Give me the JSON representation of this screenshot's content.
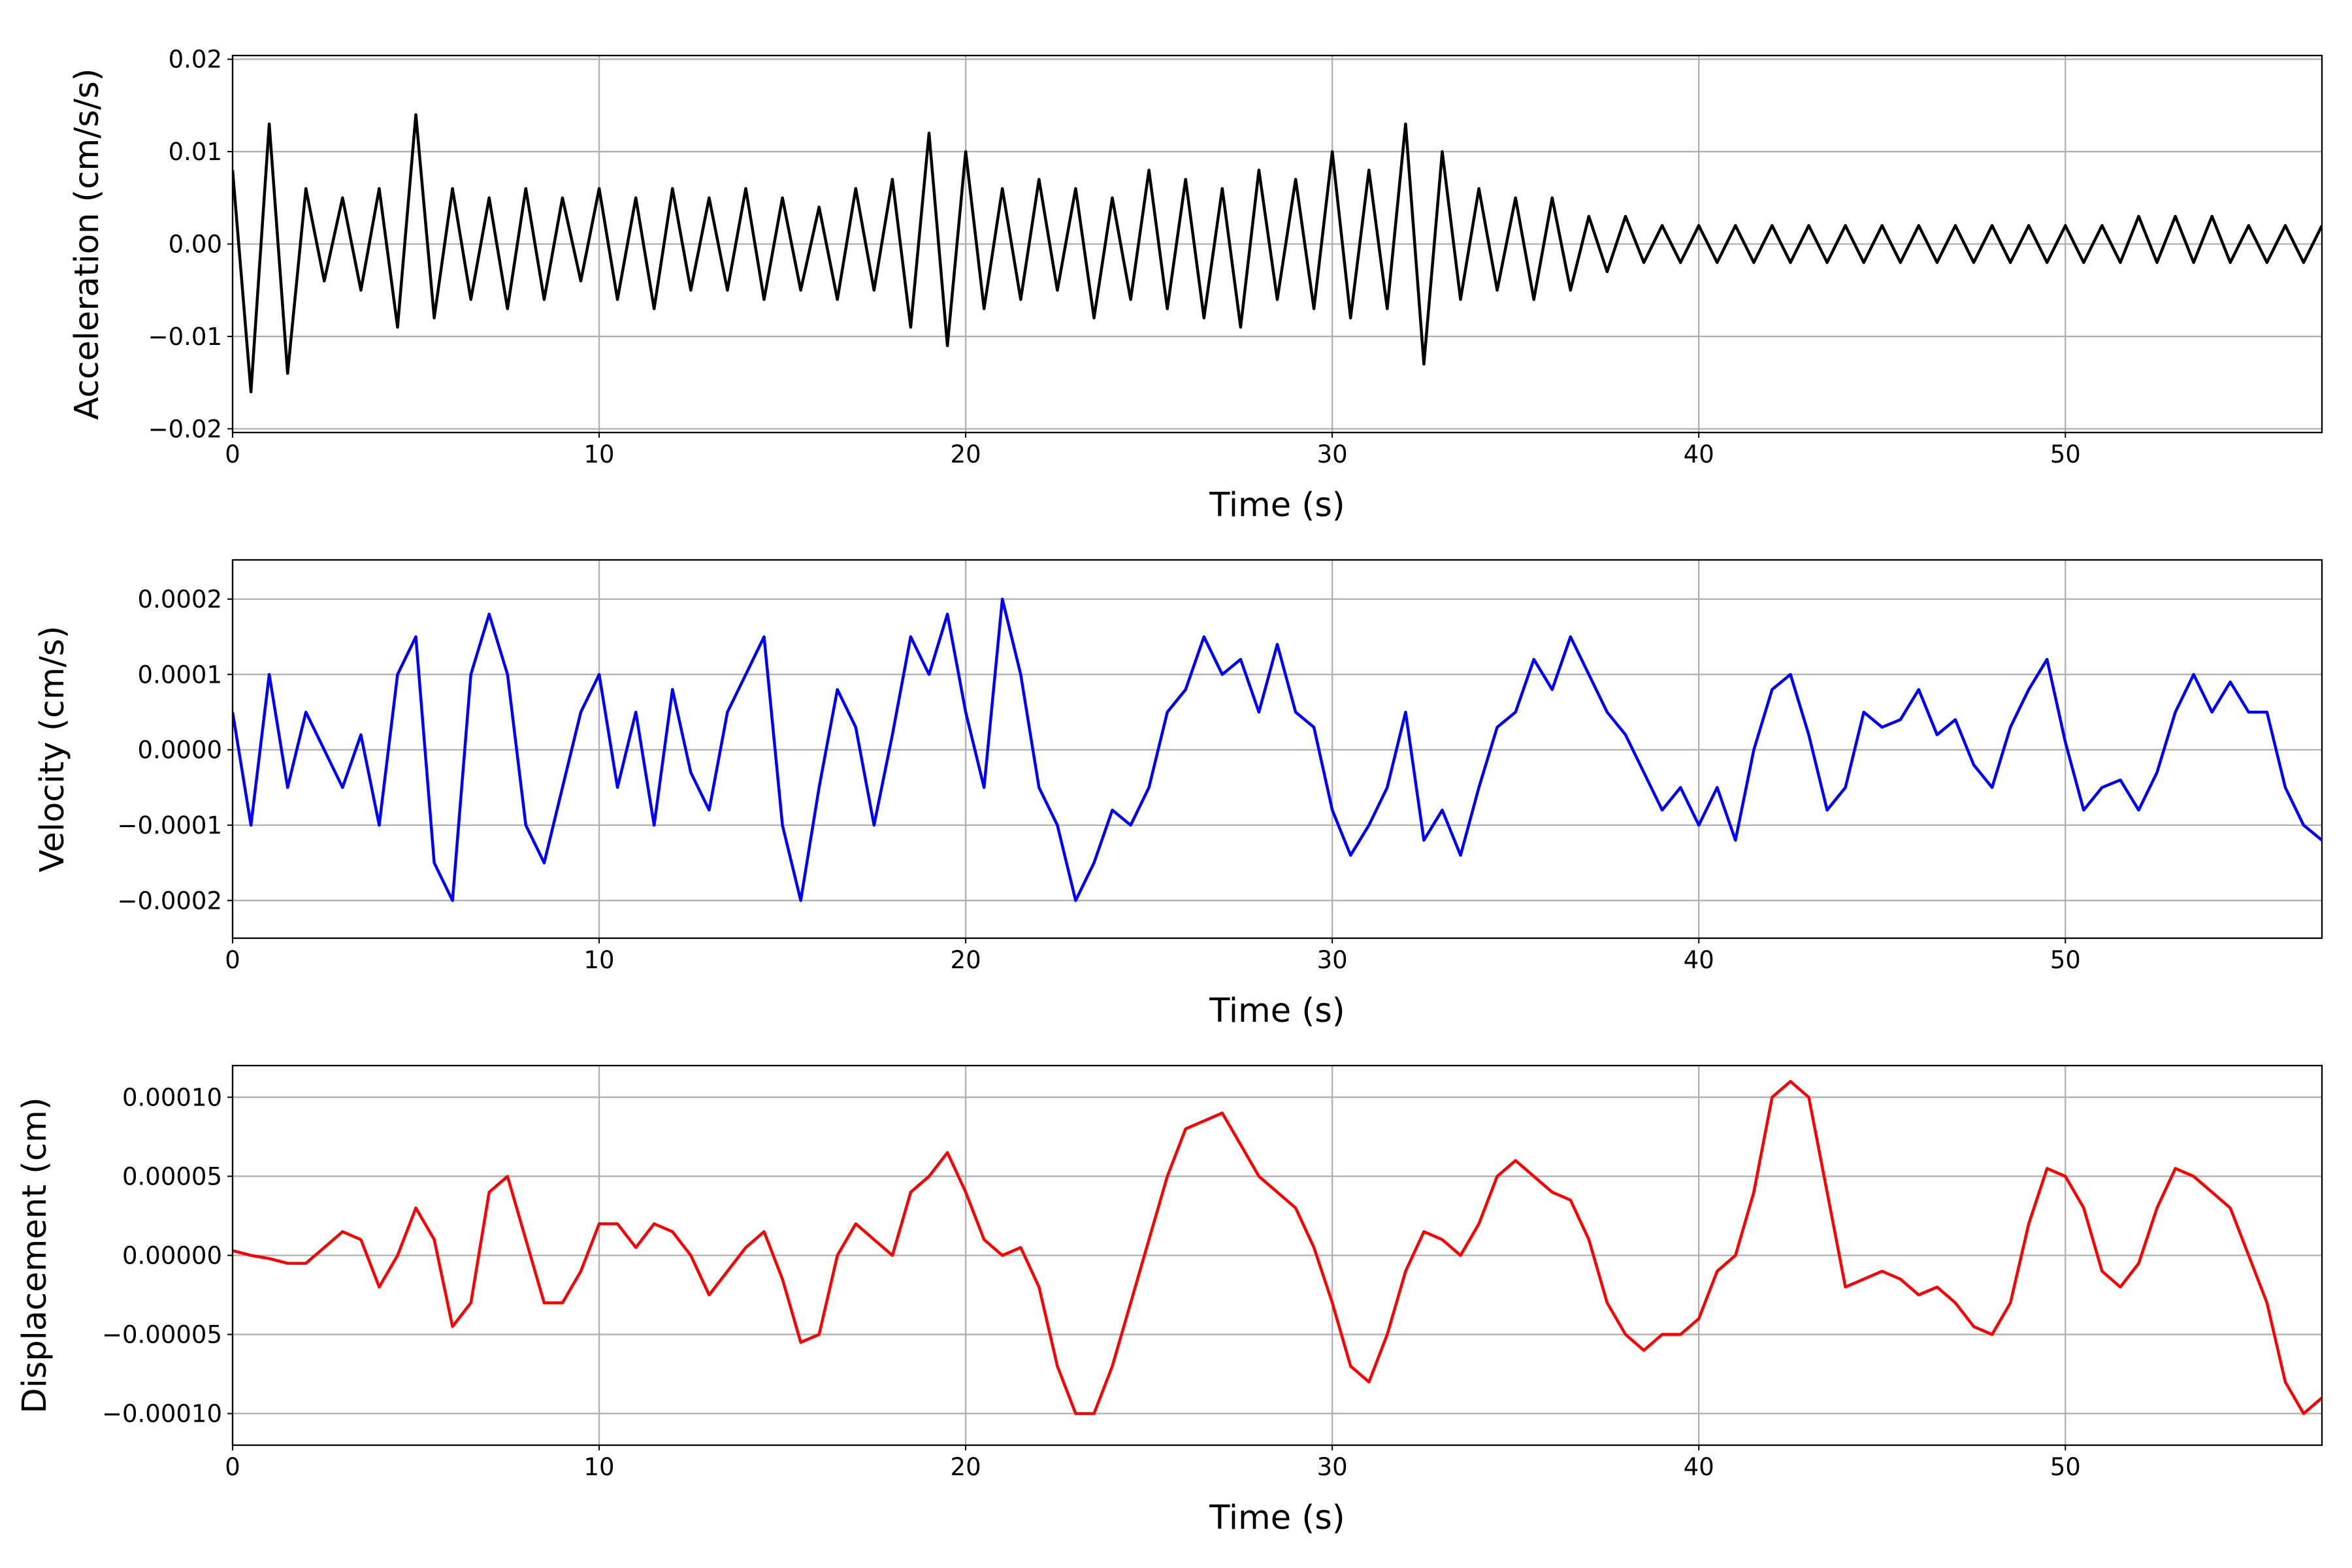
{
  "chart_data": [
    {
      "type": "line",
      "xlabel": "Time (s)",
      "ylabel": "Acceleration (cm/s/s)",
      "color": "#000000",
      "grid": true,
      "xlim": [
        0,
        57
      ],
      "ylim": [
        -0.0204,
        0.0204
      ],
      "xticks": [
        0,
        10,
        20,
        30,
        40,
        50
      ],
      "yticks": [
        {
          "value": -0.02,
          "label": "−0.02"
        },
        {
          "value": -0.01,
          "label": "−0.01"
        },
        {
          "value": 0,
          "label": "0.00"
        },
        {
          "value": 0.01,
          "label": "0.01"
        },
        {
          "value": 0.02,
          "label": "0.02"
        }
      ],
      "x": [
        0,
        0.5,
        1,
        1.5,
        2,
        2.5,
        3,
        3.5,
        4,
        4.5,
        5,
        5.5,
        6,
        6.5,
        7,
        7.5,
        8,
        8.5,
        9,
        9.5,
        10,
        10.5,
        11,
        11.5,
        12,
        12.5,
        13,
        13.5,
        14,
        14.5,
        15,
        15.5,
        16,
        16.5,
        17,
        17.5,
        18,
        18.5,
        19,
        19.5,
        20,
        20.5,
        21,
        21.5,
        22,
        22.5,
        23,
        23.5,
        24,
        24.5,
        25,
        25.5,
        26,
        26.5,
        27,
        27.5,
        28,
        28.5,
        29,
        29.5,
        30,
        30.5,
        31,
        31.5,
        32,
        32.5,
        33,
        33.5,
        34,
        34.5,
        35,
        35.5,
        36,
        36.5,
        37,
        37.5,
        38,
        38.5,
        39,
        39.5,
        40,
        40.5,
        41,
        41.5,
        42,
        42.5,
        43,
        43.5,
        44,
        44.5,
        45,
        45.5,
        46,
        46.5,
        47,
        47.5,
        48,
        48.5,
        49,
        49.5,
        50,
        50.5,
        51,
        51.5,
        52,
        52.5,
        53,
        53.5,
        54,
        54.5,
        55,
        55.5,
        56,
        56.5,
        57
      ],
      "values": [
        0.008,
        -0.016,
        0.013,
        -0.014,
        0.006,
        -0.004,
        0.005,
        -0.005,
        0.006,
        -0.009,
        0.014,
        -0.008,
        0.006,
        -0.006,
        0.005,
        -0.007,
        0.006,
        -0.006,
        0.005,
        -0.004,
        0.006,
        -0.006,
        0.005,
        -0.007,
        0.006,
        -0.005,
        0.005,
        -0.005,
        0.006,
        -0.006,
        0.005,
        -0.005,
        0.004,
        -0.006,
        0.006,
        -0.005,
        0.007,
        -0.009,
        0.012,
        -0.011,
        0.01,
        -0.007,
        0.006,
        -0.006,
        0.007,
        -0.005,
        0.006,
        -0.008,
        0.005,
        -0.006,
        0.008,
        -0.007,
        0.007,
        -0.008,
        0.006,
        -0.009,
        0.008,
        -0.006,
        0.007,
        -0.007,
        0.01,
        -0.008,
        0.008,
        -0.007,
        0.013,
        -0.013,
        0.01,
        -0.006,
        0.006,
        -0.005,
        0.005,
        -0.006,
        0.005,
        -0.005,
        0.003,
        -0.003,
        0.003,
        -0.002,
        0.002,
        -0.002,
        0.002,
        -0.002,
        0.002,
        -0.002,
        0.002,
        -0.002,
        0.002,
        -0.002,
        0.002,
        -0.002,
        0.002,
        -0.002,
        0.002,
        -0.002,
        0.002,
        -0.002,
        0.002,
        -0.002,
        0.002,
        -0.002,
        0.002,
        -0.002,
        0.002,
        -0.002,
        0.003,
        -0.002,
        0.003,
        -0.002,
        0.003,
        -0.002,
        0.002,
        -0.002,
        0.002,
        -0.002,
        0.002
      ]
    },
    {
      "type": "line",
      "xlabel": "Time (s)",
      "ylabel": "Velocity (cm/s)",
      "color": "#0000ff",
      "grid": true,
      "xlim": [
        0,
        57
      ],
      "ylim": [
        -0.00025,
        0.000252
      ],
      "xticks": [
        0,
        10,
        20,
        30,
        40,
        50
      ],
      "yticks": [
        {
          "value": -0.0002,
          "label": "−0.0002"
        },
        {
          "value": -0.0001,
          "label": "−0.0001"
        },
        {
          "value": 0,
          "label": "0.0000"
        },
        {
          "value": 0.0001,
          "label": "0.0001"
        },
        {
          "value": 0.0002,
          "label": "0.0002"
        }
      ],
      "x": [
        0,
        0.5,
        1,
        1.5,
        2,
        2.5,
        3,
        3.5,
        4,
        4.5,
        5,
        5.5,
        6,
        6.5,
        7,
        7.5,
        8,
        8.5,
        9,
        9.5,
        10,
        10.5,
        11,
        11.5,
        12,
        12.5,
        13,
        13.5,
        14,
        14.5,
        15,
        15.5,
        16,
        16.5,
        17,
        17.5,
        18,
        18.5,
        19,
        19.5,
        20,
        20.5,
        21,
        21.5,
        22,
        22.5,
        23,
        23.5,
        24,
        24.5,
        25,
        25.5,
        26,
        26.5,
        27,
        27.5,
        28,
        28.5,
        29,
        29.5,
        30,
        30.5,
        31,
        31.5,
        32,
        32.5,
        33,
        33.5,
        34,
        34.5,
        35,
        35.5,
        36,
        36.5,
        37,
        37.5,
        38,
        38.5,
        39,
        39.5,
        40,
        40.5,
        41,
        41.5,
        42,
        42.5,
        43,
        43.5,
        44,
        44.5,
        45,
        45.5,
        46,
        46.5,
        47,
        47.5,
        48,
        48.5,
        49,
        49.5,
        50,
        50.5,
        51,
        51.5,
        52,
        52.5,
        53,
        53.5,
        54,
        54.5,
        55,
        55.5,
        56,
        56.5,
        57
      ],
      "values": [
        5e-05,
        -0.0001,
        0.0001,
        -5e-05,
        5e-05,
        0,
        -5e-05,
        2e-05,
        -0.0001,
        0.0001,
        0.00015,
        -0.00015,
        -0.0002,
        0.0001,
        0.00018,
        0.0001,
        -0.0001,
        -0.00015,
        -5e-05,
        5e-05,
        0.0001,
        -5e-05,
        5e-05,
        -0.0001,
        8e-05,
        -3e-05,
        -8e-05,
        5e-05,
        0.0001,
        0.00015,
        -0.0001,
        -0.0002,
        -5e-05,
        8e-05,
        3e-05,
        -0.0001,
        2e-05,
        0.00015,
        0.0001,
        0.00018,
        5e-05,
        -5e-05,
        0.0002,
        0.0001,
        -5e-05,
        -0.0001,
        -0.0002,
        -0.00015,
        -8e-05,
        -0.0001,
        -5e-05,
        5e-05,
        8e-05,
        0.00015,
        0.0001,
        0.00012,
        5e-05,
        0.00014,
        5e-05,
        3e-05,
        -8e-05,
        -0.00014,
        -0.0001,
        -5e-05,
        5e-05,
        -0.00012,
        -8e-05,
        -0.00014,
        -5e-05,
        3e-05,
        5e-05,
        0.00012,
        8e-05,
        0.00015,
        0.0001,
        5e-05,
        2e-05,
        -3e-05,
        -8e-05,
        -5e-05,
        -0.0001,
        -5e-05,
        -0.00012,
        0,
        8e-05,
        0.0001,
        2e-05,
        -8e-05,
        -5e-05,
        5e-05,
        3e-05,
        4e-05,
        8e-05,
        2e-05,
        4e-05,
        -2e-05,
        -5e-05,
        3e-05,
        8e-05,
        0.00012,
        1e-05,
        -8e-05,
        -5e-05,
        -4e-05,
        -8e-05,
        -3e-05,
        5e-05,
        0.0001,
        5e-05,
        9e-05,
        5e-05,
        5e-05,
        -5e-05,
        -0.0001,
        -0.00012
      ]
    },
    {
      "type": "line",
      "xlabel": "Time (s)",
      "ylabel": "Displacement (cm)",
      "color": "#ff0000",
      "grid": true,
      "xlim": [
        0,
        57
      ],
      "ylim": [
        -0.00012,
        0.00012
      ],
      "xticks": [
        0,
        10,
        20,
        30,
        40,
        50
      ],
      "yticks": [
        {
          "value": -0.0001,
          "label": "−0.00010"
        },
        {
          "value": -5e-05,
          "label": "−0.00005"
        },
        {
          "value": 0,
          "label": "0.00000"
        },
        {
          "value": 5e-05,
          "label": "0.00005"
        },
        {
          "value": 0.0001,
          "label": "0.00010"
        }
      ],
      "x": [
        0,
        0.5,
        1,
        1.5,
        2,
        2.5,
        3,
        3.5,
        4,
        4.5,
        5,
        5.5,
        6,
        6.5,
        7,
        7.5,
        8,
        8.5,
        9,
        9.5,
        10,
        10.5,
        11,
        11.5,
        12,
        12.5,
        13,
        13.5,
        14,
        14.5,
        15,
        15.5,
        16,
        16.5,
        17,
        17.5,
        18,
        18.5,
        19,
        19.5,
        20,
        20.5,
        21,
        21.5,
        22,
        22.5,
        23,
        23.5,
        24,
        24.5,
        25,
        25.5,
        26,
        26.5,
        27,
        27.5,
        28,
        28.5,
        29,
        29.5,
        30,
        30.5,
        31,
        31.5,
        32,
        32.5,
        33,
        33.5,
        34,
        34.5,
        35,
        35.5,
        36,
        36.5,
        37,
        37.5,
        38,
        38.5,
        39,
        39.5,
        40,
        40.5,
        41,
        41.5,
        42,
        42.5,
        43,
        43.5,
        44,
        44.5,
        45,
        45.5,
        46,
        46.5,
        47,
        47.5,
        48,
        48.5,
        49,
        49.5,
        50,
        50.5,
        51,
        51.5,
        52,
        52.5,
        53,
        53.5,
        54,
        54.5,
        55,
        55.5,
        56,
        56.5,
        57
      ],
      "values": [
        3e-06,
        0,
        -2e-06,
        -5e-06,
        -5e-06,
        5e-06,
        1.5e-05,
        1e-05,
        -2e-05,
        0,
        3e-05,
        1e-05,
        -4.5e-05,
        -3e-05,
        4e-05,
        5e-05,
        1e-05,
        -3e-05,
        -3e-05,
        -1e-05,
        2e-05,
        2e-05,
        5e-06,
        2e-05,
        1.5e-05,
        0,
        -2.5e-05,
        -1e-05,
        5e-06,
        1.5e-05,
        -1.5e-05,
        -5.5e-05,
        -5e-05,
        0,
        2e-05,
        1e-05,
        0,
        4e-05,
        5e-05,
        6.5e-05,
        4e-05,
        1e-05,
        0,
        5e-06,
        -2e-05,
        -7e-05,
        -0.0001,
        -0.0001,
        -7e-05,
        -3e-05,
        1e-05,
        5e-05,
        8e-05,
        8.5e-05,
        9e-05,
        7e-05,
        5e-05,
        4e-05,
        3e-05,
        5e-06,
        -3e-05,
        -7e-05,
        -8e-05,
        -5e-05,
        -1e-05,
        1.5e-05,
        1e-05,
        0,
        2e-05,
        5e-05,
        6e-05,
        5e-05,
        4e-05,
        3.5e-05,
        1e-05,
        -3e-05,
        -5e-05,
        -6e-05,
        -5e-05,
        -5e-05,
        -4e-05,
        -1e-05,
        0,
        4e-05,
        0.0001,
        0.00011,
        0.0001,
        4e-05,
        -2e-05,
        -1.5e-05,
        -1e-05,
        -1.5e-05,
        -2.5e-05,
        -2e-05,
        -3e-05,
        -4.5e-05,
        -5e-05,
        -3e-05,
        2e-05,
        5.5e-05,
        5e-05,
        3e-05,
        -1e-05,
        -2e-05,
        -5e-06,
        3e-05,
        5.5e-05,
        5e-05,
        4e-05,
        3e-05,
        0,
        -3e-05,
        -8e-05,
        -0.0001,
        -9e-05
      ]
    }
  ]
}
